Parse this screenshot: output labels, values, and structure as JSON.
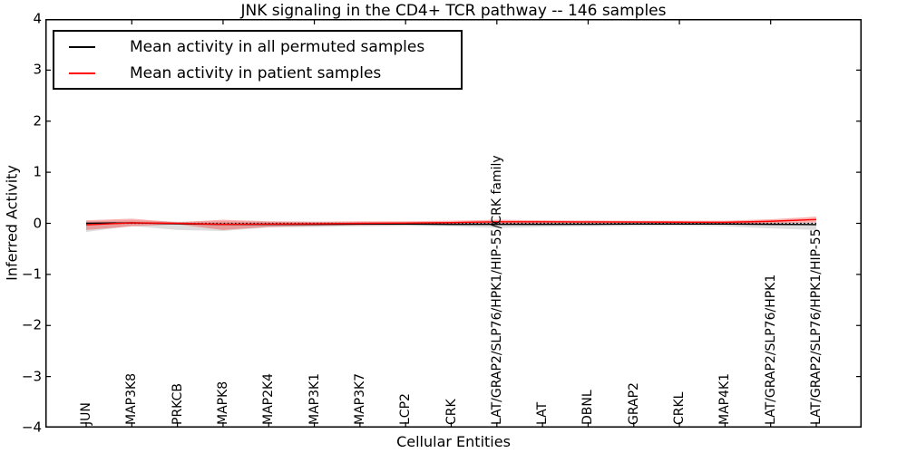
{
  "title": "JNK signaling in the CD4+ TCR pathway -- 146 samples",
  "legend": [
    {
      "label": "Mean activity in all permuted samples",
      "color": "#000000"
    },
    {
      "label": "Mean activity in patient samples",
      "color": "#ff0000"
    }
  ],
  "chart_data": {
    "type": "line",
    "title": "JNK signaling in the CD4+ TCR pathway -- 146 samples",
    "xlabel": "Cellular Entities",
    "ylabel": "Inferred Activity",
    "ylim": [
      -4,
      4
    ],
    "yticks": [
      4,
      3,
      2,
      1,
      0,
      -1,
      -2,
      -3,
      -4
    ],
    "grid": false,
    "legend_position": "upper left",
    "zero_reference_line": 0,
    "categories": [
      "JUN",
      "MAP3K8",
      "PRKCB",
      "MAPK8",
      "MAP2K4",
      "MAP3K1",
      "MAP3K7",
      "LCP2",
      "CRK",
      "LAT/GRAP2/SLP76/HPK1/HIP-55/CRK family",
      "LAT",
      "DBNL",
      "GRAP2",
      "CRKL",
      "MAP4K1",
      "LAT/GRAP2/SLP76/HPK1",
      "LAT/GRAP2/SLP76/HPK1/HIP-55"
    ],
    "series": [
      {
        "name": "Mean activity in all permuted samples",
        "color": "#000000",
        "band_color": "rgba(0,0,0,0.13)",
        "values": [
          0.0,
          0.01,
          -0.01,
          -0.02,
          -0.02,
          -0.02,
          -0.015,
          -0.015,
          -0.02,
          -0.02,
          -0.02,
          -0.018,
          -0.015,
          -0.015,
          -0.015,
          -0.02,
          -0.025
        ],
        "band_upper": [
          0.04,
          0.06,
          0.03,
          0.04,
          0.03,
          0.03,
          0.02,
          0.02,
          0.02,
          0.03,
          0.02,
          0.02,
          0.02,
          0.02,
          0.02,
          0.02,
          0.02
        ],
        "band_lower": [
          -0.17,
          -0.05,
          -0.13,
          -0.15,
          -0.08,
          -0.07,
          -0.06,
          -0.05,
          -0.06,
          -0.09,
          -0.07,
          -0.06,
          -0.055,
          -0.05,
          -0.06,
          -0.1,
          -0.13
        ]
      },
      {
        "name": "Mean activity in patient samples",
        "color": "#ff0000",
        "band_color": "rgba(255,0,0,0.30)",
        "values": [
          -0.03,
          0.01,
          0.0,
          -0.02,
          -0.015,
          -0.01,
          0.0,
          0.005,
          0.015,
          0.03,
          0.03,
          0.027,
          0.025,
          0.022,
          0.02,
          0.04,
          0.075
        ],
        "band_upper": [
          0.06,
          0.09,
          0.02,
          0.07,
          0.04,
          0.03,
          0.04,
          0.04,
          0.05,
          0.07,
          0.06,
          0.055,
          0.05,
          0.05,
          0.05,
          0.08,
          0.13
        ],
        "band_lower": [
          -0.13,
          -0.06,
          -0.02,
          -0.13,
          -0.07,
          -0.05,
          -0.04,
          -0.03,
          -0.02,
          -0.005,
          0.0,
          0.0,
          0.0,
          -0.005,
          -0.01,
          0.0,
          0.02
        ]
      }
    ]
  }
}
